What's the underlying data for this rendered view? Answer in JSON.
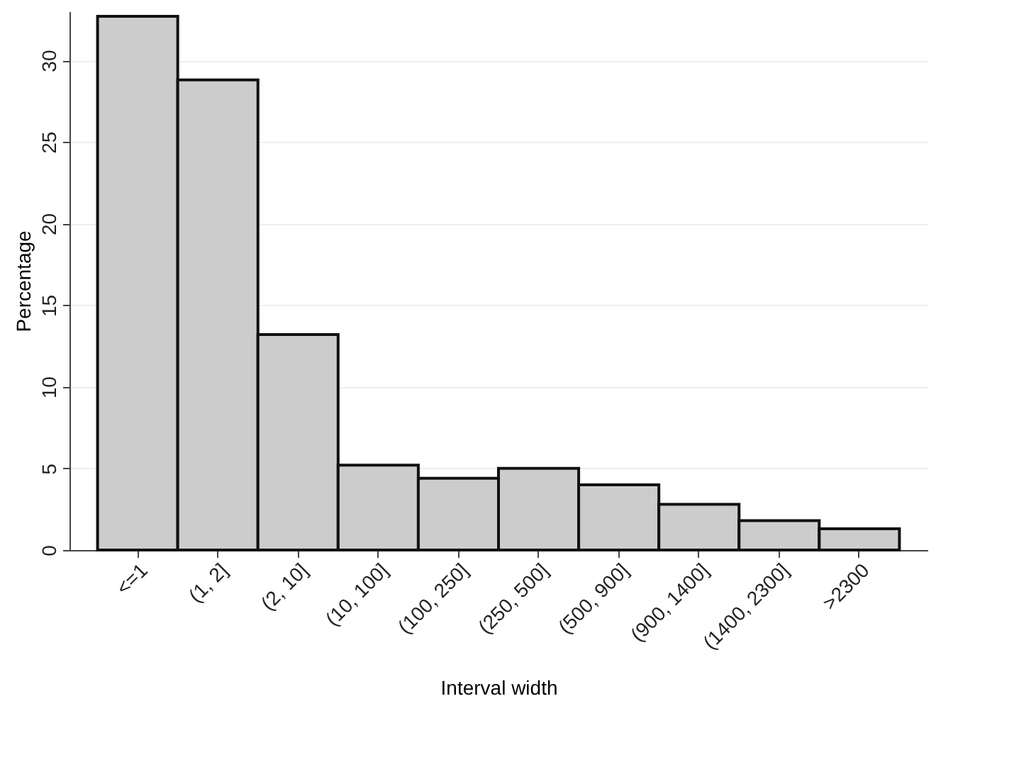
{
  "chart_data": {
    "type": "bar",
    "xlabel": "Interval width",
    "ylabel": "Percentage",
    "categories": [
      "<=1",
      "(1, 2]",
      "(2, 10]",
      "(10, 100]",
      "(100, 250]",
      "(250, 500]",
      "(500, 900]",
      "(900, 1400]",
      "(1400, 2300]",
      ">2300"
    ],
    "values": [
      32.7,
      28.8,
      13.2,
      5.2,
      4.4,
      5.0,
      4.0,
      2.8,
      1.8,
      1.3
    ],
    "color": "#cccccc",
    "ylim": [
      0,
      33
    ],
    "yticks": [
      0,
      5,
      10,
      15,
      20,
      25,
      30
    ],
    "grid": "y"
  }
}
